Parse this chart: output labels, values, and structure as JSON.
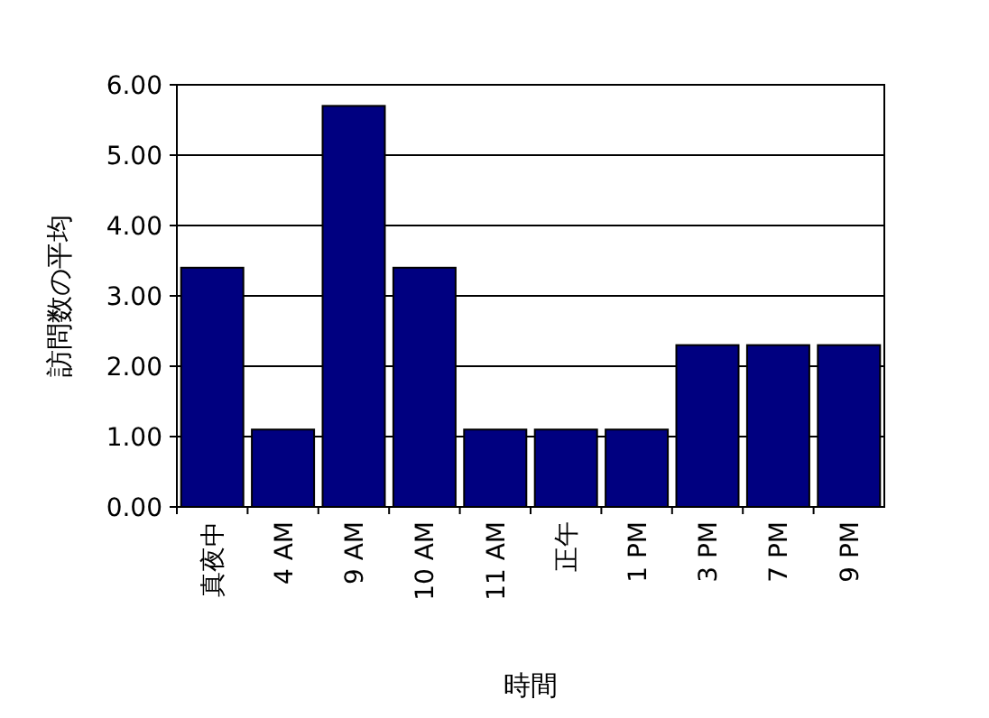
{
  "chart_data": {
    "type": "bar",
    "xlabel": "時間",
    "ylabel": "訪問数の平均",
    "categories": [
      "真夜中",
      "4 AM",
      "9 AM",
      "10 AM",
      "11 AM",
      "正午",
      "1 PM",
      "3 PM",
      "7 PM",
      "9 PM"
    ],
    "values": [
      3.4,
      1.1,
      5.7,
      3.4,
      1.1,
      1.1,
      1.1,
      2.3,
      2.3,
      2.3
    ],
    "color": "#000080",
    "ylim": [
      0,
      6
    ],
    "yticks": [
      {
        "value": 0,
        "label": "0.00"
      },
      {
        "value": 1,
        "label": "1.00"
      },
      {
        "value": 2,
        "label": "2.00"
      },
      {
        "value": 3,
        "label": "3.00"
      },
      {
        "value": 4,
        "label": "4.00"
      },
      {
        "value": 5,
        "label": "5.00"
      },
      {
        "value": 6,
        "label": "6.00"
      }
    ],
    "grid": "y"
  }
}
